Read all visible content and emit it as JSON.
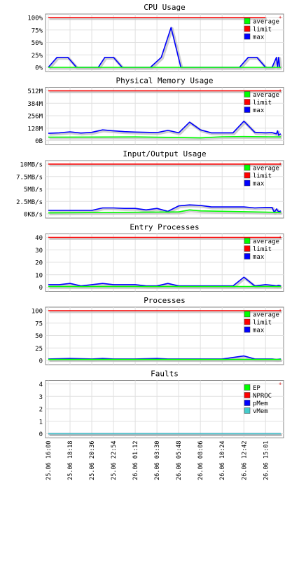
{
  "chart_data": [
    {
      "type": "line",
      "title": "CPU Usage",
      "ylim": [
        0,
        100
      ],
      "y_ticks": [
        0,
        25,
        50,
        75,
        100
      ],
      "y_tick_labels": [
        "0%",
        "25%",
        "50%",
        "75%",
        "100%"
      ],
      "x_tick_labels": [
        "25.06 16:00",
        "25.06 18:18",
        "25.06 20:36",
        "25.06 22:54",
        "26.06 01:12",
        "26.06 03:30",
        "26.06 05:48",
        "26.06 08:06",
        "26.06 10:24",
        "26.06 12:42",
        "26.06 15:01"
      ],
      "legend": [
        "average",
        "limit",
        "max"
      ],
      "legend_position": "top-right",
      "grid": true,
      "series": [
        {
          "name": "limit",
          "color": "#ff0000",
          "values": [
            [
              0,
              100
            ],
            [
              10,
              100
            ]
          ]
        },
        {
          "name": "max",
          "color": "#0000ff",
          "values": [
            [
              0,
              0
            ],
            [
              0.4,
              20
            ],
            [
              0.9,
              20
            ],
            [
              1.3,
              0
            ],
            [
              2.3,
              0
            ],
            [
              2.6,
              20
            ],
            [
              3.0,
              20
            ],
            [
              3.4,
              0
            ],
            [
              4.7,
              0
            ],
            [
              5.2,
              20
            ],
            [
              5.65,
              80
            ],
            [
              6.1,
              0
            ],
            [
              7.2,
              0
            ],
            [
              8.8,
              0
            ],
            [
              9.2,
              20
            ],
            [
              9.6,
              20
            ],
            [
              10,
              0
            ],
            [
              10.0,
              0
            ],
            [
              10.3,
              0
            ],
            [
              10.5,
              20
            ],
            [
              10.55,
              0
            ],
            [
              10.6,
              20
            ],
            [
              10.65,
              0
            ]
          ]
        },
        {
          "name": "average",
          "color": "#00ff00",
          "values": [
            [
              0,
              0
            ],
            [
              10.7,
              0
            ]
          ]
        }
      ]
    },
    {
      "type": "line",
      "title": "Physical Memory Usage",
      "ylim": [
        0,
        512
      ],
      "y_ticks": [
        0,
        128,
        256,
        384,
        512
      ],
      "y_tick_labels": [
        "0B",
        "128M",
        "256M",
        "384M",
        "512M"
      ],
      "x_tick_labels": [
        "25.06 16:00",
        "25.06 18:18",
        "25.06 20:36",
        "25.06 22:54",
        "26.06 01:12",
        "26.06 03:30",
        "26.06 05:48",
        "26.06 08:06",
        "26.06 10:24",
        "26.06 12:42",
        "26.06 15:01"
      ],
      "legend": [
        "average",
        "limit",
        "max"
      ],
      "legend_position": "top-right",
      "grid": true,
      "series": [
        {
          "name": "limit",
          "color": "#ff0000",
          "values": [
            [
              0,
              512
            ],
            [
              10.7,
              512
            ]
          ]
        },
        {
          "name": "max",
          "color": "#0000ff",
          "values": [
            [
              0,
              75
            ],
            [
              0.5,
              80
            ],
            [
              1,
              90
            ],
            [
              1.5,
              78
            ],
            [
              2,
              85
            ],
            [
              2.5,
              110
            ],
            [
              3,
              100
            ],
            [
              3.5,
              92
            ],
            [
              4,
              88
            ],
            [
              4.5,
              85
            ],
            [
              5,
              82
            ],
            [
              5.5,
              105
            ],
            [
              6,
              80
            ],
            [
              6.5,
              190
            ],
            [
              7,
              110
            ],
            [
              7.5,
              80
            ],
            [
              8,
              80
            ],
            [
              8.5,
              80
            ],
            [
              9,
              200
            ],
            [
              9.5,
              85
            ],
            [
              10,
              80
            ],
            [
              10.3,
              82
            ],
            [
              10.5,
              70
            ],
            [
              10.55,
              100
            ],
            [
              10.6,
              55
            ],
            [
              10.7,
              70
            ]
          ]
        },
        {
          "name": "average",
          "color": "#00ff00",
          "values": [
            [
              0,
              35
            ],
            [
              4,
              38
            ],
            [
              6,
              32
            ],
            [
              7,
              28
            ],
            [
              8,
              40
            ],
            [
              9,
              42
            ],
            [
              10.7,
              38
            ]
          ]
        }
      ]
    },
    {
      "type": "line",
      "title": "Input/Output Usage",
      "ylim": [
        0,
        10
      ],
      "y_ticks": [
        0,
        2.5,
        5,
        7.5,
        10
      ],
      "y_tick_labels": [
        "0KB/s",
        "2.5MB/s",
        "5MB/s",
        "7.5MB/s",
        "10MB/s"
      ],
      "x_tick_labels": [
        "25.06 16:00",
        "25.06 18:18",
        "25.06 20:36",
        "25.06 22:54",
        "26.06 01:12",
        "26.06 03:30",
        "26.06 05:48",
        "26.06 08:06",
        "26.06 10:24",
        "26.06 12:42",
        "26.06 15:01"
      ],
      "legend": [
        "average",
        "limit",
        "max"
      ],
      "legend_position": "top-right",
      "grid": true,
      "series": [
        {
          "name": "limit",
          "color": "#ff0000",
          "values": [
            [
              0,
              10
            ],
            [
              10.7,
              10
            ]
          ]
        },
        {
          "name": "max",
          "color": "#0000ff",
          "values": [
            [
              0,
              0.7
            ],
            [
              1,
              0.7
            ],
            [
              2,
              0.7
            ],
            [
              2.5,
              1.2
            ],
            [
              3,
              1.2
            ],
            [
              3.5,
              1.1
            ],
            [
              4,
              1.1
            ],
            [
              4.5,
              0.8
            ],
            [
              5,
              1.1
            ],
            [
              5.5,
              0.5
            ],
            [
              6,
              1.6
            ],
            [
              6.5,
              1.8
            ],
            [
              7,
              1.7
            ],
            [
              7.5,
              1.4
            ],
            [
              8,
              1.4
            ],
            [
              8.5,
              1.4
            ],
            [
              9,
              1.4
            ],
            [
              9.5,
              1.2
            ],
            [
              10,
              1.3
            ],
            [
              10.3,
              1.3
            ],
            [
              10.4,
              0.3
            ],
            [
              10.5,
              1.0
            ],
            [
              10.6,
              0.4
            ],
            [
              10.7,
              0.6
            ]
          ]
        },
        {
          "name": "average",
          "color": "#00ff00",
          "values": [
            [
              0,
              0.2
            ],
            [
              6,
              0.4
            ],
            [
              6.5,
              0.8
            ],
            [
              7,
              0.6
            ],
            [
              10.7,
              0.3
            ]
          ]
        }
      ]
    },
    {
      "type": "line",
      "title": "Entry Processes",
      "ylim": [
        0,
        40
      ],
      "y_ticks": [
        0,
        10,
        20,
        30,
        40
      ],
      "y_tick_labels": [
        "0",
        "10",
        "20",
        "30",
        "40"
      ],
      "x_tick_labels": [
        "25.06 16:00",
        "25.06 18:18",
        "25.06 20:36",
        "25.06 22:54",
        "26.06 01:12",
        "26.06 03:30",
        "26.06 05:48",
        "26.06 08:06",
        "26.06 10:24",
        "26.06 12:42",
        "26.06 15:01"
      ],
      "legend": [
        "average",
        "limit",
        "max"
      ],
      "legend_position": "top-right",
      "grid": true,
      "series": [
        {
          "name": "limit",
          "color": "#ff0000",
          "values": [
            [
              0,
              40
            ],
            [
              10.7,
              40
            ]
          ]
        },
        {
          "name": "max",
          "color": "#0000ff",
          "values": [
            [
              0,
              2
            ],
            [
              0.5,
              2
            ],
            [
              1,
              3
            ],
            [
              1.5,
              1
            ],
            [
              2,
              2
            ],
            [
              2.5,
              3
            ],
            [
              3,
              2
            ],
            [
              3.5,
              2
            ],
            [
              4,
              2
            ],
            [
              4.5,
              1
            ],
            [
              5,
              1
            ],
            [
              5.5,
              3
            ],
            [
              6,
              1
            ],
            [
              7,
              1
            ],
            [
              8,
              1
            ],
            [
              8.5,
              1
            ],
            [
              9,
              8
            ],
            [
              9.5,
              1
            ],
            [
              10,
              2
            ],
            [
              10.3,
              1.5
            ],
            [
              10.5,
              1
            ],
            [
              10.6,
              1.5
            ],
            [
              10.7,
              1
            ]
          ]
        },
        {
          "name": "average",
          "color": "#00ff00",
          "values": [
            [
              0,
              0.5
            ],
            [
              10.7,
              0.5
            ]
          ]
        }
      ]
    },
    {
      "type": "line",
      "title": "Processes",
      "ylim": [
        0,
        100
      ],
      "y_ticks": [
        0,
        25,
        50,
        75,
        100
      ],
      "y_tick_labels": [
        "0",
        "25",
        "50",
        "75",
        "100"
      ],
      "x_tick_labels": [
        "25.06 16:00",
        "25.06 18:18",
        "25.06 20:36",
        "25.06 22:54",
        "26.06 01:12",
        "26.06 03:30",
        "26.06 05:48",
        "26.06 08:06",
        "26.06 10:24",
        "26.06 12:42",
        "26.06 15:01"
      ],
      "legend": [
        "average",
        "limit",
        "max"
      ],
      "legend_position": "top-right",
      "grid": true,
      "series": [
        {
          "name": "limit",
          "color": "#ff0000",
          "values": [
            [
              0,
              100
            ],
            [
              10.7,
              100
            ]
          ]
        },
        {
          "name": "max",
          "color": "#0000ff",
          "values": [
            [
              0,
              3
            ],
            [
              1,
              4
            ],
            [
              2,
              3
            ],
            [
              2.5,
              4
            ],
            [
              3,
              3
            ],
            [
              4,
              3
            ],
            [
              5,
              4
            ],
            [
              5.5,
              3
            ],
            [
              7,
              3
            ],
            [
              8,
              3
            ],
            [
              9,
              9
            ],
            [
              9.5,
              3
            ],
            [
              10,
              3
            ],
            [
              10.3,
              3
            ],
            [
              10.5,
              2
            ],
            [
              10.7,
              3
            ]
          ]
        },
        {
          "name": "average",
          "color": "#00ff00",
          "values": [
            [
              0,
              2
            ],
            [
              10.7,
              2
            ]
          ]
        }
      ]
    },
    {
      "type": "line",
      "title": "Faults",
      "ylim": [
        0,
        4
      ],
      "y_ticks": [
        0,
        1,
        2,
        3,
        4
      ],
      "y_tick_labels": [
        "0",
        "1",
        "2",
        "3",
        "4"
      ],
      "x_tick_labels": [
        "25.06 16:00",
        "25.06 18:18",
        "25.06 20:36",
        "25.06 22:54",
        "26.06 01:12",
        "26.06 03:30",
        "26.06 05:48",
        "26.06 08:06",
        "26.06 10:24",
        "26.06 12:42",
        "26.06 15:01"
      ],
      "legend": [
        "EP",
        "NPROC",
        "pMem",
        "vMem"
      ],
      "legend_position": "top-right",
      "grid": true,
      "series": [
        {
          "name": "EP",
          "color": "#00ff00",
          "values": [
            [
              0,
              0
            ],
            [
              10.7,
              0
            ]
          ]
        },
        {
          "name": "NPROC",
          "color": "#ff0000",
          "values": [
            [
              0,
              0
            ],
            [
              10.7,
              0
            ]
          ]
        },
        {
          "name": "pMem",
          "color": "#0000ff",
          "values": [
            [
              0,
              0
            ],
            [
              10.7,
              0
            ]
          ]
        },
        {
          "name": "vMem",
          "color": "#44cccc",
          "values": [
            [
              0,
              0
            ],
            [
              10.7,
              0
            ]
          ]
        }
      ]
    }
  ]
}
